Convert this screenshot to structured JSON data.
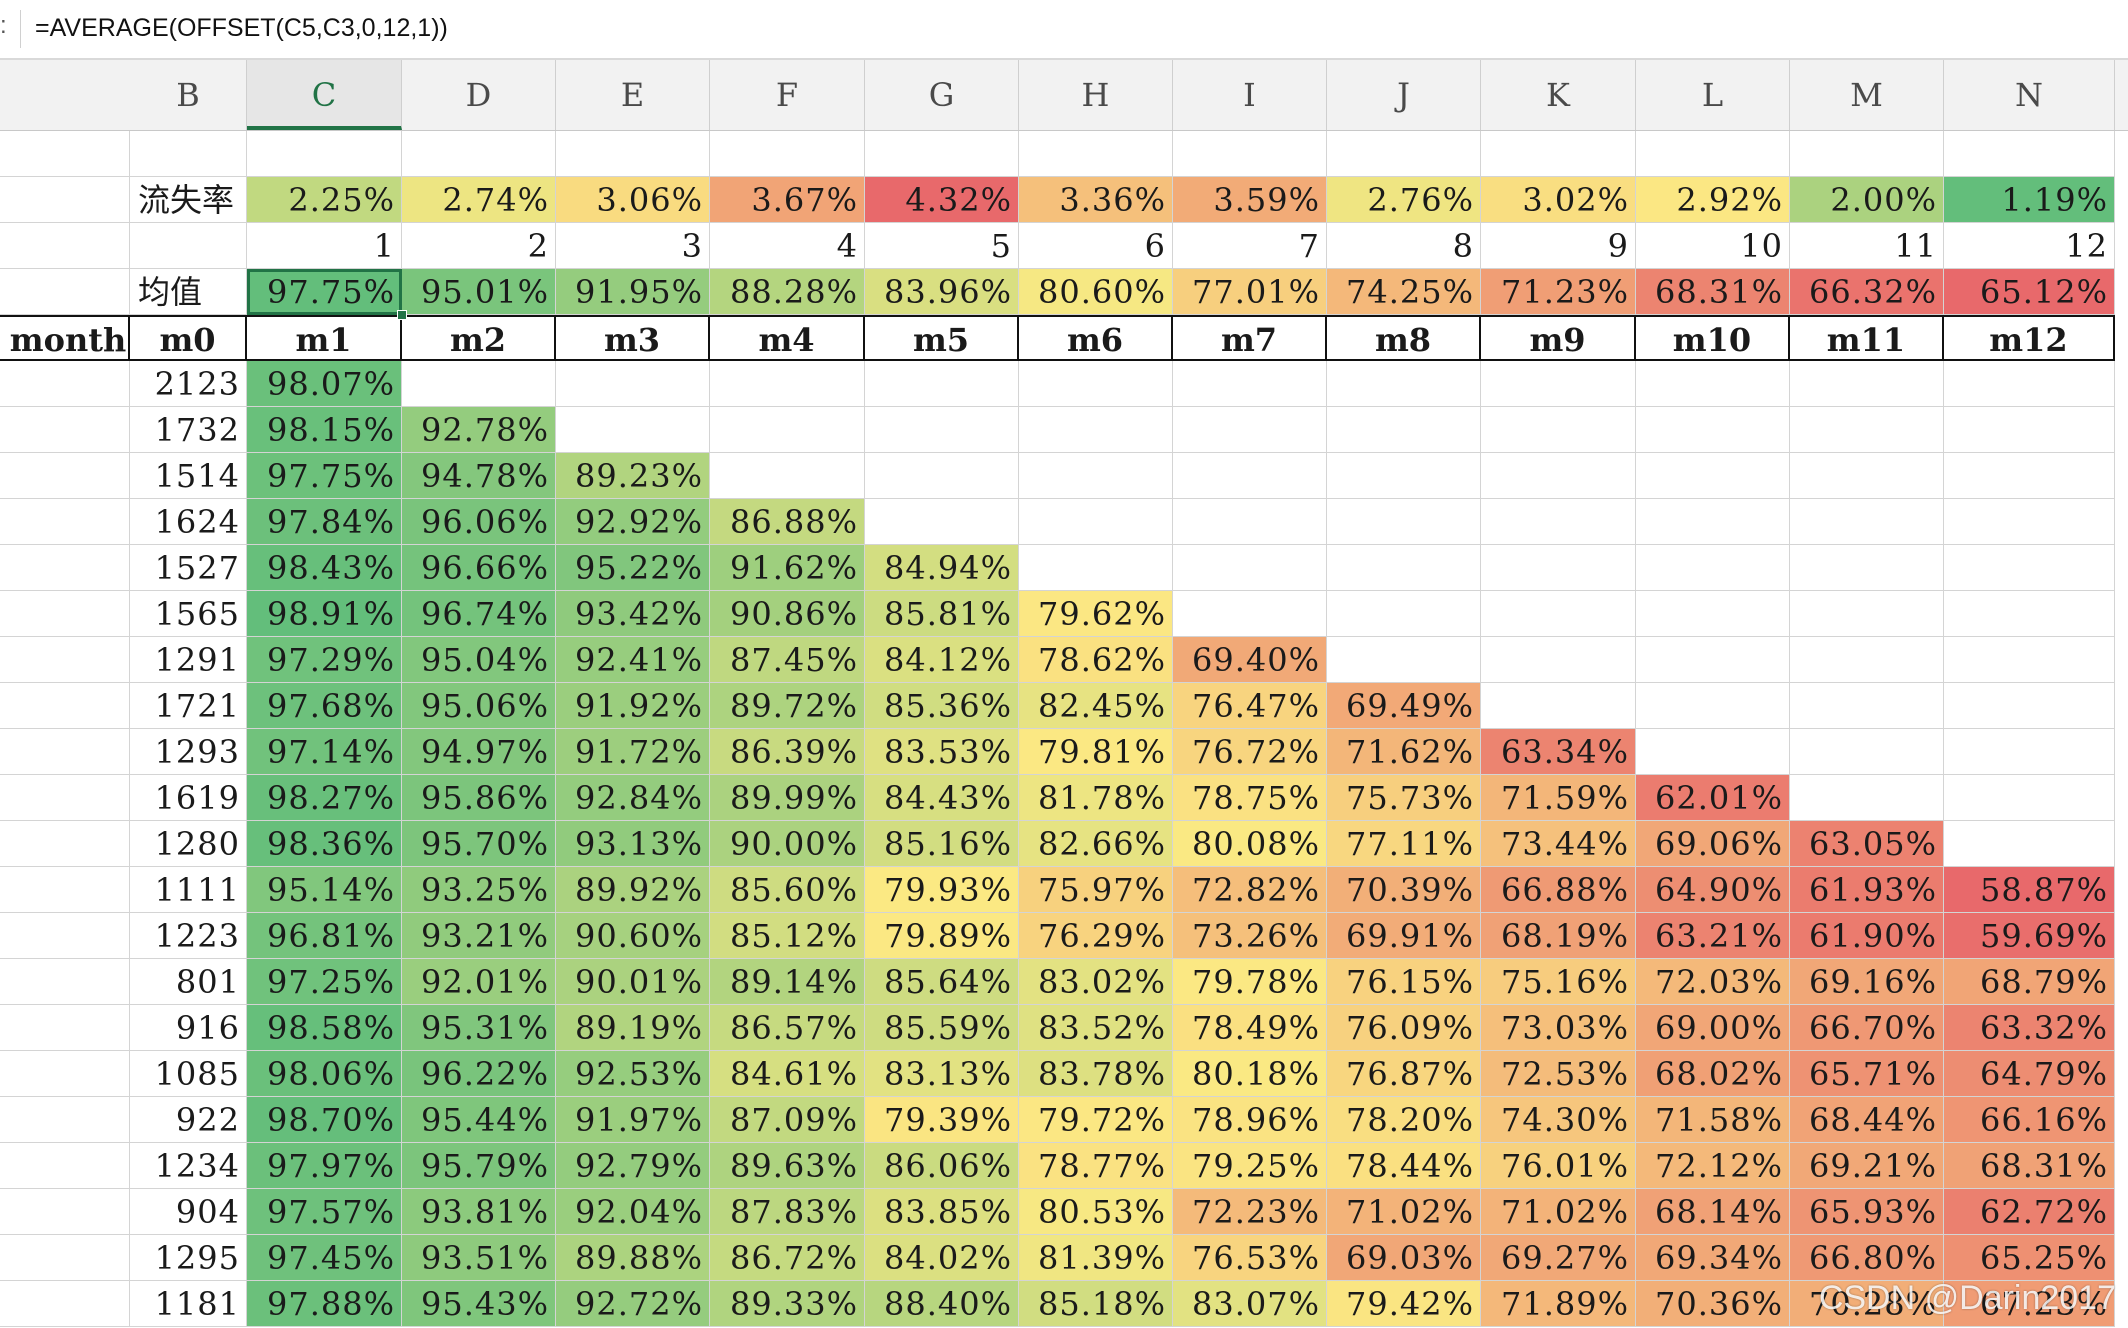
{
  "formula_bar": {
    "left_marker": ":",
    "formula": "=AVERAGE(OFFSET(C5,C3,0,12,1))"
  },
  "columns": [
    "B",
    "C",
    "D",
    "E",
    "F",
    "G",
    "H",
    "I",
    "J",
    "K",
    "L",
    "M",
    "N"
  ],
  "selected_column": "C",
  "churn_label": "流失率",
  "churn_rates": [
    "2.25%",
    "2.74%",
    "3.06%",
    "3.67%",
    "4.32%",
    "3.36%",
    "3.59%",
    "2.76%",
    "3.02%",
    "2.92%",
    "2.00%",
    "1.19%"
  ],
  "offsets": [
    "1",
    "2",
    "3",
    "4",
    "5",
    "6",
    "7",
    "8",
    "9",
    "10",
    "11",
    "12"
  ],
  "avg_label": "均值",
  "averages": [
    "97.75%",
    "95.01%",
    "91.95%",
    "88.28%",
    "83.96%",
    "80.60%",
    "77.01%",
    "74.25%",
    "71.23%",
    "68.31%",
    "66.32%",
    "65.12%"
  ],
  "table_header": [
    "month",
    "m0",
    "m1",
    "m2",
    "m3",
    "m4",
    "m5",
    "m6",
    "m7",
    "m8",
    "m9",
    "m10",
    "m11",
    "m12"
  ],
  "rows": [
    {
      "m0": "2123",
      "vals": [
        "98.07%"
      ]
    },
    {
      "m0": "1732",
      "vals": [
        "98.15%",
        "92.78%"
      ]
    },
    {
      "m0": "1514",
      "vals": [
        "97.75%",
        "94.78%",
        "89.23%"
      ]
    },
    {
      "m0": "1624",
      "vals": [
        "97.84%",
        "96.06%",
        "92.92%",
        "86.88%"
      ]
    },
    {
      "m0": "1527",
      "vals": [
        "98.43%",
        "96.66%",
        "95.22%",
        "91.62%",
        "84.94%"
      ]
    },
    {
      "m0": "1565",
      "vals": [
        "98.91%",
        "96.74%",
        "93.42%",
        "90.86%",
        "85.81%",
        "79.62%"
      ]
    },
    {
      "m0": "1291",
      "vals": [
        "97.29%",
        "95.04%",
        "92.41%",
        "87.45%",
        "84.12%",
        "78.62%",
        "69.40%"
      ]
    },
    {
      "m0": "1721",
      "vals": [
        "97.68%",
        "95.06%",
        "91.92%",
        "89.72%",
        "85.36%",
        "82.45%",
        "76.47%",
        "69.49%"
      ]
    },
    {
      "m0": "1293",
      "vals": [
        "97.14%",
        "94.97%",
        "91.72%",
        "86.39%",
        "83.53%",
        "79.81%",
        "76.72%",
        "71.62%",
        "63.34%"
      ]
    },
    {
      "m0": "1619",
      "vals": [
        "98.27%",
        "95.86%",
        "92.84%",
        "89.99%",
        "84.43%",
        "81.78%",
        "78.75%",
        "75.73%",
        "71.59%",
        "62.01%"
      ]
    },
    {
      "m0": "1280",
      "vals": [
        "98.36%",
        "95.70%",
        "93.13%",
        "90.00%",
        "85.16%",
        "82.66%",
        "80.08%",
        "77.11%",
        "73.44%",
        "69.06%",
        "63.05%"
      ]
    },
    {
      "m0": "1111",
      "vals": [
        "95.14%",
        "93.25%",
        "89.92%",
        "85.60%",
        "79.93%",
        "75.97%",
        "72.82%",
        "70.39%",
        "66.88%",
        "64.90%",
        "61.93%",
        "58.87%"
      ]
    },
    {
      "m0": "1223",
      "vals": [
        "96.81%",
        "93.21%",
        "90.60%",
        "85.12%",
        "79.89%",
        "76.29%",
        "73.26%",
        "69.91%",
        "68.19%",
        "63.21%",
        "61.90%",
        "59.69%"
      ]
    },
    {
      "m0": "801",
      "vals": [
        "97.25%",
        "92.01%",
        "90.01%",
        "89.14%",
        "85.64%",
        "83.02%",
        "79.78%",
        "76.15%",
        "75.16%",
        "72.03%",
        "69.16%",
        "68.79%"
      ]
    },
    {
      "m0": "916",
      "vals": [
        "98.58%",
        "95.31%",
        "89.19%",
        "86.57%",
        "85.59%",
        "83.52%",
        "78.49%",
        "76.09%",
        "73.03%",
        "69.00%",
        "66.70%",
        "63.32%"
      ]
    },
    {
      "m0": "1085",
      "vals": [
        "98.06%",
        "96.22%",
        "92.53%",
        "84.61%",
        "83.13%",
        "83.78%",
        "80.18%",
        "76.87%",
        "72.53%",
        "68.02%",
        "65.71%",
        "64.79%"
      ]
    },
    {
      "m0": "922",
      "vals": [
        "98.70%",
        "95.44%",
        "91.97%",
        "87.09%",
        "79.39%",
        "79.72%",
        "78.96%",
        "78.20%",
        "74.30%",
        "71.58%",
        "68.44%",
        "66.16%"
      ]
    },
    {
      "m0": "1234",
      "vals": [
        "97.97%",
        "95.79%",
        "92.79%",
        "89.63%",
        "86.06%",
        "78.77%",
        "79.25%",
        "78.44%",
        "76.01%",
        "72.12%",
        "69.21%",
        "68.31%"
      ]
    },
    {
      "m0": "904",
      "vals": [
        "97.57%",
        "93.81%",
        "92.04%",
        "87.83%",
        "83.85%",
        "80.53%",
        "72.23%",
        "71.02%",
        "71.02%",
        "68.14%",
        "65.93%",
        "62.72%"
      ]
    },
    {
      "m0": "1295",
      "vals": [
        "97.45%",
        "93.51%",
        "89.88%",
        "86.72%",
        "84.02%",
        "81.39%",
        "76.53%",
        "69.03%",
        "69.27%",
        "69.34%",
        "66.80%",
        "65.25%"
      ]
    },
    {
      "m0": "1181",
      "vals": [
        "97.88%",
        "95.43%",
        "92.72%",
        "89.33%",
        "88.40%",
        "85.18%",
        "83.07%",
        "79.42%",
        "71.89%",
        "70.36%",
        "70.28%",
        "67.23%"
      ]
    }
  ],
  "watermark": "CSDN @Darin2017",
  "colors": {
    "low": "#e8696b",
    "mid": "#fbe983",
    "high": "#63be7b",
    "selection": "#217346"
  }
}
